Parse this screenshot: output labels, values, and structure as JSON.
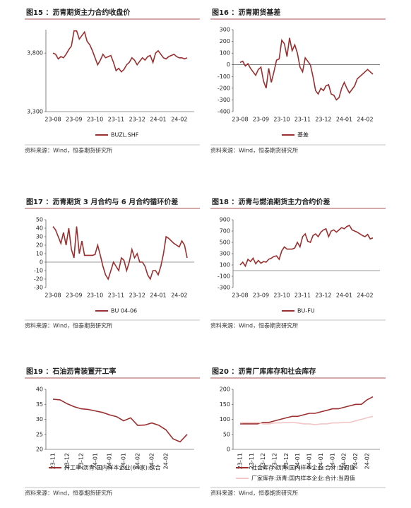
{
  "chart_data": [
    {
      "type": "line",
      "title": "图15 ：沥青期货主力合约收盘价",
      "source": "资料来源：Wind，恒泰期货研究所",
      "categories": [
        "23-08",
        null,
        null,
        null,
        null,
        null,
        null,
        null,
        "23-09",
        null,
        null,
        null,
        null,
        null,
        null,
        null,
        "23-10",
        null,
        null,
        null,
        null,
        null,
        null,
        null,
        "23-11",
        null,
        null,
        null,
        null,
        null,
        null,
        null,
        "23-12",
        null,
        null,
        null,
        null,
        null,
        null,
        null,
        "24-01",
        null,
        null,
        null,
        null,
        null,
        null,
        null,
        "24-02",
        null,
        null,
        null
      ],
      "series": [
        {
          "name": "BUZL.SHF",
          "color": "#9b2f2f",
          "values": [
            3800,
            3790,
            3750,
            3770,
            3760,
            3790,
            3830,
            3860,
            3990,
            3990,
            3920,
            3950,
            3980,
            3900,
            3870,
            3820,
            3760,
            3700,
            3740,
            3790,
            3760,
            3770,
            3780,
            3720,
            3650,
            3670,
            3640,
            3660,
            3700,
            3720,
            3760,
            3740,
            3700,
            3730,
            3760,
            3740,
            3770,
            3780,
            3720,
            3800,
            3820,
            3790,
            3760,
            3750,
            3770,
            3780,
            3790,
            3770,
            3760,
            3760,
            3750,
            3760
          ]
        }
      ],
      "ylim": [
        3300,
        4000
      ],
      "yticks": [
        {
          "value": 3300,
          "label": "3,300"
        },
        {
          "value": 3800,
          "label": "3,800"
        }
      ]
    },
    {
      "type": "line",
      "title": "图16 ：沥青期货基差",
      "source": "资料来源：Wind，恒泰期货研究所",
      "categories": [
        "23-08",
        null,
        null,
        null,
        null,
        null,
        null,
        null,
        "23-09",
        null,
        null,
        null,
        null,
        null,
        null,
        null,
        "23-10",
        null,
        null,
        null,
        null,
        null,
        null,
        null,
        "23-11",
        null,
        null,
        null,
        null,
        null,
        null,
        null,
        "23-12",
        null,
        null,
        null,
        null,
        null,
        null,
        null,
        "24-01",
        null,
        null,
        null,
        null,
        null,
        null,
        null,
        "24-02",
        null,
        null,
        null
      ],
      "series": [
        {
          "name": "基差",
          "color": "#9b2f2f",
          "values": [
            20,
            30,
            -10,
            10,
            -30,
            -60,
            -90,
            -40,
            -20,
            -140,
            -200,
            -30,
            -150,
            -60,
            40,
            50,
            210,
            180,
            70,
            230,
            120,
            170,
            100,
            -20,
            -60,
            60,
            30,
            0,
            -100,
            -220,
            -250,
            -200,
            -220,
            -180,
            -170,
            -250,
            -260,
            -300,
            -280,
            -200,
            -150,
            -200,
            -240,
            -210,
            -180,
            -120,
            -100,
            -80,
            -60,
            -40,
            -60,
            -80
          ]
        }
      ],
      "ylim": [
        -400,
        300
      ],
      "yticks": [
        -400,
        -300,
        -200,
        -100,
        0,
        100,
        200,
        300
      ]
    },
    {
      "type": "line",
      "title": "图17 ：沥青期货 3 月合约与 6 月合约循环价差",
      "source": "资料来源：Wind，恒泰期货研究所",
      "categories": [
        "23-08",
        null,
        null,
        null,
        null,
        null,
        null,
        null,
        "23-09",
        null,
        null,
        null,
        null,
        null,
        null,
        null,
        "23-10",
        null,
        null,
        null,
        null,
        null,
        null,
        null,
        "23-11",
        null,
        null,
        null,
        null,
        null,
        null,
        null,
        "23-12",
        null,
        null,
        null,
        null,
        null,
        null,
        null,
        "24-01",
        null,
        null,
        null,
        null,
        null,
        null,
        null,
        "24-02",
        null,
        null,
        null
      ],
      "series": [
        {
          "name": "BU 04-06",
          "color": "#9b2f2f",
          "values": [
            42,
            38,
            30,
            22,
            35,
            20,
            40,
            15,
            5,
            42,
            10,
            25,
            8,
            8,
            8,
            8,
            9,
            20,
            8,
            -5,
            -15,
            -20,
            -10,
            0,
            -5,
            -10,
            5,
            2,
            -10,
            0,
            15,
            5,
            10,
            0,
            0,
            -5,
            -15,
            -20,
            -10,
            -10,
            -15,
            -5,
            10,
            30,
            28,
            25,
            22,
            20,
            18,
            25,
            20,
            5
          ]
        }
      ],
      "ylim": [
        -30,
        50
      ],
      "yticks": [
        -30,
        -20,
        -10,
        0,
        10,
        20,
        30,
        40,
        50
      ]
    },
    {
      "type": "line",
      "title": "图18 ：沥青与燃油期货主力合约价差",
      "source": "资料来源：Wind，恒泰期货研究所",
      "categories": [
        "23-08",
        null,
        null,
        null,
        null,
        null,
        null,
        null,
        "23-09",
        null,
        null,
        null,
        null,
        null,
        null,
        null,
        "23-10",
        null,
        null,
        null,
        null,
        null,
        null,
        null,
        "23-11",
        null,
        null,
        null,
        null,
        null,
        null,
        null,
        "23-12",
        null,
        null,
        null,
        null,
        null,
        null,
        null,
        "24-01",
        null,
        null,
        null,
        null,
        null,
        null,
        null,
        "24-02",
        null,
        null,
        null
      ],
      "series": [
        {
          "name": "BU-FU",
          "color": "#9b2f2f",
          "values": [
            100,
            150,
            80,
            200,
            160,
            220,
            120,
            180,
            130,
            160,
            150,
            200,
            220,
            250,
            260,
            200,
            350,
            420,
            380,
            380,
            380,
            400,
            500,
            420,
            600,
            650,
            520,
            500,
            620,
            650,
            600,
            680,
            720,
            740,
            600,
            700,
            720,
            680,
            720,
            760,
            740,
            780,
            800,
            720,
            700,
            680,
            650,
            620,
            600,
            640,
            560,
            580
          ]
        }
      ],
      "ylim": [
        -300,
        900
      ],
      "yticks": [
        -300,
        -100,
        100,
        300,
        500,
        700,
        900
      ]
    },
    {
      "type": "line",
      "title": "图19 ：石油沥青装置开工率",
      "source": "资料来源：Wind，恒泰期货研究所",
      "rotate_labels": true,
      "categories": [
        "23-11",
        null,
        "23-12",
        null,
        "23-12",
        null,
        "24-01",
        null,
        "24-01",
        null,
        "24-01",
        null,
        "24-02",
        null,
        "24-02",
        null,
        "24-02",
        null,
        null,
        null
      ],
      "series": [
        {
          "name": "开工率:沥青:国内样本企业(64家):综合",
          "color": "#9b2f2f",
          "values": [
            36.7,
            36.5,
            35.2,
            34.2,
            33.5,
            33.3,
            32.8,
            32.3,
            31.5,
            30.9,
            29.5,
            30.5,
            28.0,
            28.1,
            28.8,
            28.0,
            26.5,
            23.5,
            22.5,
            25.0
          ]
        }
      ],
      "ylim": [
        20,
        40
      ],
      "yticks": [
        20,
        25,
        30,
        35,
        40
      ]
    },
    {
      "type": "line",
      "title": "图20 ：沥青厂库库存和社会库存",
      "source": "资料来源：Wind，恒泰期货研究所",
      "rotate_labels": true,
      "categories": [
        "23-11",
        null,
        "23-11",
        null,
        "23-12",
        null,
        "23-12",
        null,
        "23-12",
        null,
        "24-01",
        null,
        "24-01",
        null,
        "24-01",
        null,
        "24-01",
        null,
        "24-02",
        null,
        "24-02",
        null,
        "24-02",
        null
      ],
      "series": [
        {
          "name": "社会库存:沥青:国内样本企业:合计:当周值",
          "color": "#9b2f2f",
          "values": [
            85,
            85,
            85,
            85,
            90,
            90,
            95,
            100,
            105,
            110,
            110,
            115,
            120,
            120,
            125,
            130,
            135,
            135,
            140,
            145,
            150,
            150,
            165,
            175
          ]
        },
        {
          "name": "厂家库存:沥青:国内样本企业:合计:当周值",
          "color": "#f2c6c6",
          "values": [
            88,
            90,
            90,
            90,
            85,
            85,
            88,
            88,
            90,
            90,
            88,
            85,
            85,
            82,
            85,
            85,
            88,
            88,
            90,
            90,
            95,
            100,
            105,
            110
          ]
        }
      ],
      "ylim": [
        0,
        200
      ],
      "yticks": [
        0,
        50,
        100,
        150,
        200
      ]
    }
  ]
}
